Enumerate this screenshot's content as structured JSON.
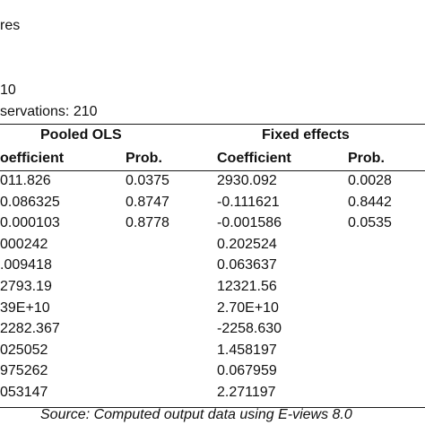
{
  "preamble": {
    "line1": "res",
    "line2": "10",
    "line3": "servations: 210"
  },
  "table": {
    "group_headers": [
      "Pooled OLS",
      "Fixed effects"
    ],
    "column_headers": [
      "oefficient",
      "Prob.",
      "Coefficient",
      "Prob."
    ],
    "rows": [
      [
        "011.826",
        "0.0375",
        "2930.092",
        "0.0028"
      ],
      [
        "0.086325",
        "0.8747",
        "-0.111621",
        "0.8442"
      ],
      [
        "0.000103",
        "0.8778",
        "-0.001586",
        "0.0535"
      ],
      [
        "000242",
        "",
        "0.202524",
        ""
      ],
      [
        ".009418",
        "",
        "0.063637",
        ""
      ],
      [
        "2793.19",
        "",
        "12321.56",
        ""
      ],
      [
        "39E+10",
        "",
        "2.70E+10",
        ""
      ],
      [
        "2282.367",
        "",
        "-2258.630",
        ""
      ],
      [
        "025052",
        "",
        "1.458197",
        ""
      ],
      [
        "975262",
        "",
        "0.067959",
        ""
      ],
      [
        "053147",
        "",
        "2.271197",
        ""
      ]
    ]
  },
  "footer": "Source: Computed output data using E-views 8.0"
}
